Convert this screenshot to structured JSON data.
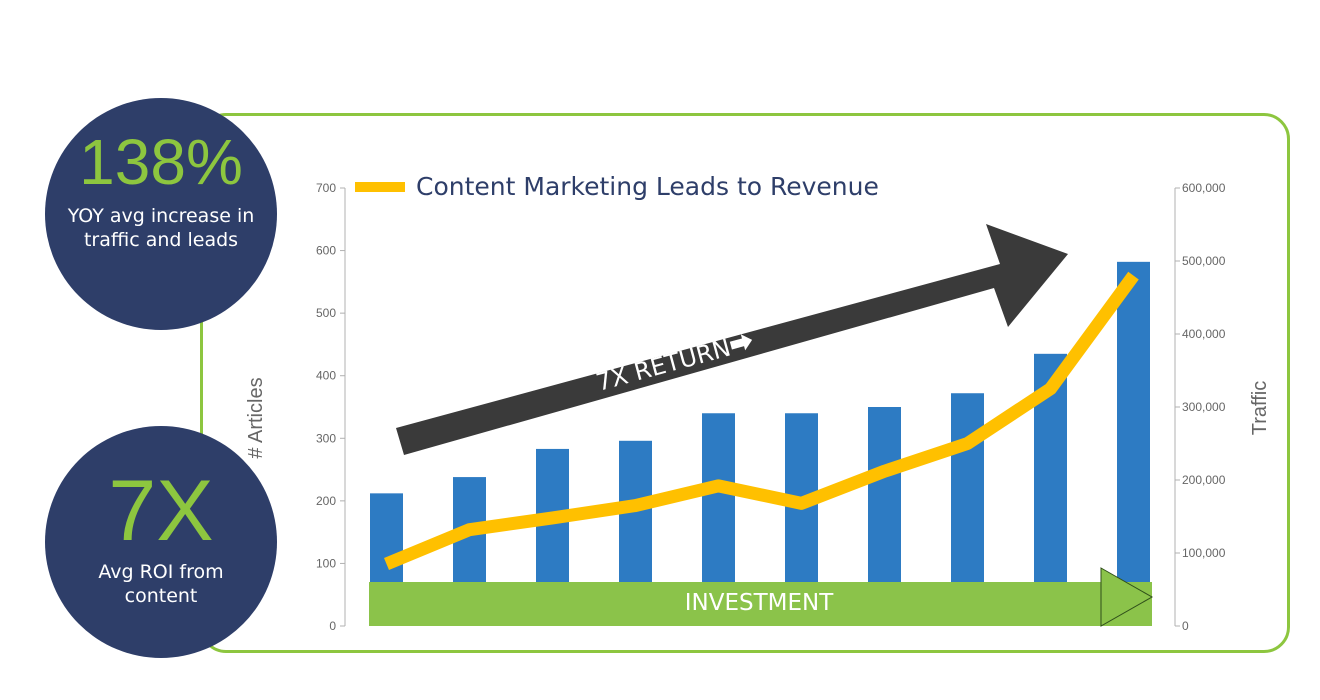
{
  "stats": [
    {
      "value": "138%",
      "caption": "YOY avg increase in traffic and leads"
    },
    {
      "value": "7X",
      "caption": "Avg ROI from content"
    }
  ],
  "colors": {
    "bars": "#2d7bc3",
    "line": "#ffc000",
    "frame": "#8dc63f",
    "circle": "#2e3e69",
    "arrow": "#3a3a3a",
    "investment": "#8bc34a"
  },
  "chart_data": {
    "type": "bar",
    "title": "Content Marketing Leads to Revenue",
    "ylabel": "# Articles",
    "y2label": "Traffic",
    "ylim": [
      0,
      700
    ],
    "y2lim": [
      0,
      600000
    ],
    "yticks": [
      "0",
      "100",
      "200",
      "300",
      "400",
      "500",
      "600",
      "700"
    ],
    "y2ticks": [
      "0",
      "100,000",
      "200,000",
      "300,000",
      "400,000",
      "500,000",
      "600,000"
    ],
    "series": [
      {
        "type": "bar",
        "axis": "left",
        "values": [
          212,
          238,
          283,
          296,
          340,
          340,
          350,
          372,
          435,
          582
        ]
      },
      {
        "type": "line",
        "axis": "right",
        "name": "Content Marketing Leads to Revenue",
        "values": [
          85000,
          132000,
          148000,
          165000,
          192000,
          168000,
          212000,
          250000,
          325000,
          480000
        ]
      }
    ],
    "annotations": {
      "arrow_label": "7X RETURN⮕",
      "investment_label": "INVESTMENT"
    },
    "grid": false,
    "legend": "top"
  }
}
